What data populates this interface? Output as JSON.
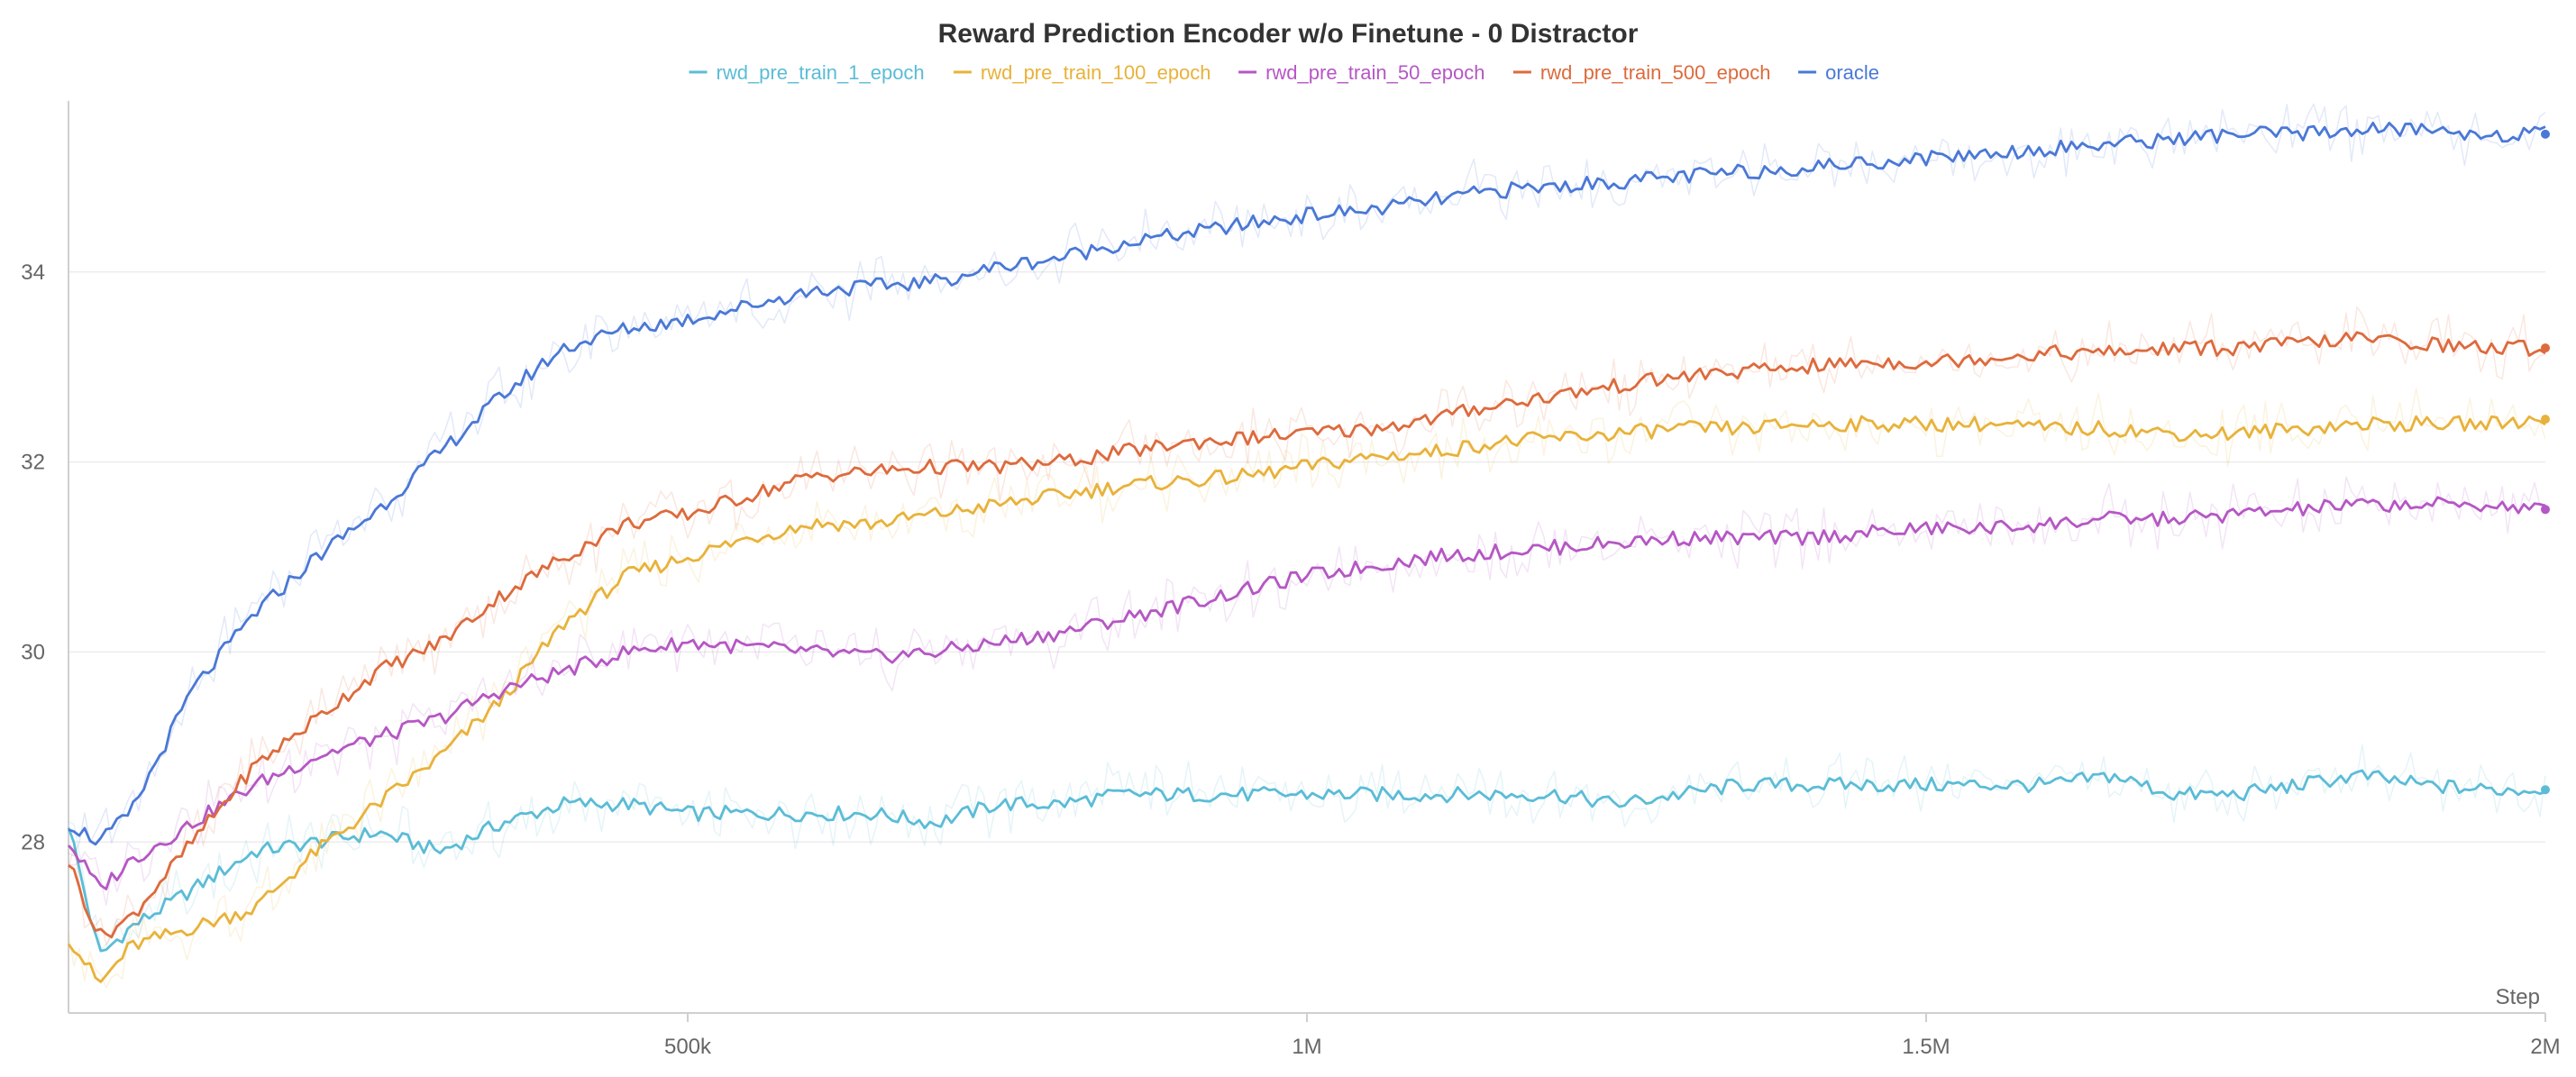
{
  "chart_data": {
    "type": "line",
    "title": "Reward Prediction Encoder w/o Finetune - 0 Distractor",
    "xlabel": "Step",
    "ylabel": "",
    "xlim": [
      0,
      2000000
    ],
    "ylim": [
      26.2,
      35.8
    ],
    "grid": true,
    "legend_position": "top-center",
    "x_ticks": [
      {
        "value": 500000,
        "label": "500k"
      },
      {
        "value": 1000000,
        "label": "1M"
      },
      {
        "value": 1500000,
        "label": "1.5M"
      },
      {
        "value": 2000000,
        "label": "2M"
      }
    ],
    "y_ticks": [
      {
        "value": 28,
        "label": "28"
      },
      {
        "value": 30,
        "label": "30"
      },
      {
        "value": 32,
        "label": "32"
      },
      {
        "value": 34,
        "label": "34"
      }
    ],
    "x": [
      0,
      25000,
      50000,
      100000,
      150000,
      200000,
      250000,
      300000,
      350000,
      400000,
      450000,
      500000,
      550000,
      600000,
      650000,
      700000,
      750000,
      800000,
      850000,
      900000,
      950000,
      1000000,
      1050000,
      1100000,
      1150000,
      1200000,
      1250000,
      1300000,
      1350000,
      1400000,
      1450000,
      1500000,
      1550000,
      1600000,
      1650000,
      1700000,
      1750000,
      1800000,
      1850000,
      1900000,
      1950000,
      2000000
    ],
    "series": [
      {
        "name": "rwd_pre_train_1_epoch",
        "color": "#5bbcd6",
        "final_value": 28.55,
        "values": [
          28.2,
          26.8,
          27.1,
          27.5,
          27.9,
          28.0,
          28.1,
          27.9,
          28.2,
          28.4,
          28.4,
          28.3,
          28.3,
          28.3,
          28.3,
          28.2,
          28.4,
          28.4,
          28.5,
          28.5,
          28.5,
          28.5,
          28.5,
          28.5,
          28.5,
          28.5,
          28.4,
          28.5,
          28.6,
          28.6,
          28.6,
          28.6,
          28.6,
          28.6,
          28.7,
          28.5,
          28.5,
          28.6,
          28.7,
          28.6,
          28.55,
          28.55
        ]
      },
      {
        "name": "rwd_pre_train_100_epoch",
        "color": "#e8b23a",
        "final_value": 32.45,
        "values": [
          27.0,
          26.5,
          26.9,
          27.1,
          27.3,
          27.9,
          28.4,
          28.9,
          29.5,
          30.3,
          30.8,
          31.0,
          31.2,
          31.35,
          31.35,
          31.45,
          31.55,
          31.65,
          31.75,
          31.8,
          31.85,
          31.95,
          32.05,
          32.1,
          32.2,
          32.25,
          32.3,
          32.35,
          32.35,
          32.4,
          32.4,
          32.4,
          32.4,
          32.35,
          32.35,
          32.3,
          32.3,
          32.35,
          32.4,
          32.4,
          32.4,
          32.45
        ]
      },
      {
        "name": "rwd_pre_train_50_epoch",
        "color": "#b557c4",
        "final_value": 31.5,
        "values": [
          28.0,
          27.5,
          27.8,
          28.2,
          28.6,
          28.9,
          29.1,
          29.3,
          29.6,
          29.8,
          30.0,
          30.1,
          30.05,
          30.0,
          29.95,
          30.0,
          30.1,
          30.2,
          30.35,
          30.5,
          30.65,
          30.8,
          30.9,
          31.0,
          31.05,
          31.1,
          31.15,
          31.2,
          31.2,
          31.2,
          31.25,
          31.3,
          31.3,
          31.35,
          31.4,
          31.4,
          31.45,
          31.5,
          31.55,
          31.55,
          31.55,
          31.5
        ]
      },
      {
        "name": "rwd_pre_train_500_epoch",
        "color": "#dd6a3c",
        "final_value": 33.2,
        "values": [
          27.8,
          27.0,
          27.2,
          28.0,
          28.8,
          29.3,
          29.8,
          30.1,
          30.6,
          31.0,
          31.35,
          31.45,
          31.65,
          31.85,
          31.9,
          31.95,
          31.95,
          32.0,
          32.1,
          32.2,
          32.25,
          32.3,
          32.35,
          32.45,
          32.6,
          32.7,
          32.8,
          32.9,
          32.95,
          33.0,
          33.05,
          33.05,
          33.1,
          33.15,
          33.15,
          33.2,
          33.2,
          33.25,
          33.3,
          33.25,
          33.2,
          33.2
        ]
      },
      {
        "name": "oracle",
        "color": "#4a78d6",
        "final_value": 35.45,
        "values": [
          28.2,
          28.0,
          28.3,
          29.6,
          30.4,
          31.0,
          31.5,
          32.1,
          32.7,
          33.2,
          33.4,
          33.5,
          33.65,
          33.8,
          33.85,
          33.9,
          34.05,
          34.15,
          34.3,
          34.4,
          34.5,
          34.6,
          34.65,
          34.75,
          34.85,
          34.9,
          34.95,
          35.0,
          35.05,
          35.1,
          35.15,
          35.2,
          35.25,
          35.3,
          35.35,
          35.4,
          35.45,
          35.45,
          35.5,
          35.5,
          35.45,
          35.45
        ]
      }
    ]
  }
}
